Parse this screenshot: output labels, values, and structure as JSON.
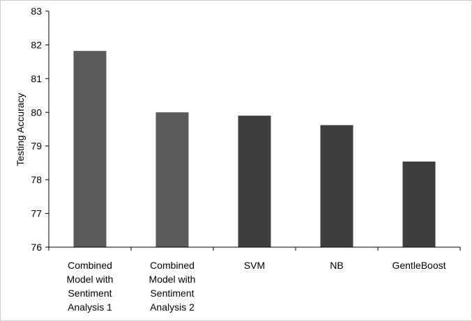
{
  "chart_data": {
    "type": "bar",
    "title": "",
    "xlabel": "",
    "ylabel": "Testing Accuracy",
    "ylim": [
      76,
      83
    ],
    "yticks": [
      76,
      77,
      78,
      79,
      80,
      81,
      82,
      83
    ],
    "grid": false,
    "legend": "none",
    "categories": [
      [
        "Combined",
        "Model with",
        "Sentiment",
        "Analysis 1"
      ],
      [
        "Combined",
        "Model with",
        "Sentiment",
        "Analysis 2"
      ],
      [
        "SVM"
      ],
      [
        "NB"
      ],
      [
        "GentleBoost"
      ]
    ],
    "values": [
      81.82,
      80.0,
      79.9,
      79.62,
      78.54
    ],
    "colors": [
      "#5a5a5a",
      "#5a5a5a",
      "#3f3f3f",
      "#3f3f3f",
      "#3f3f3f"
    ],
    "axis_color": "#000000"
  }
}
